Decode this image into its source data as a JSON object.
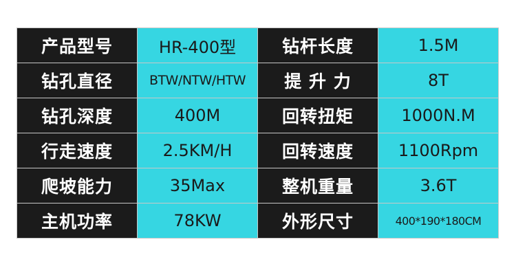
{
  "colors": {
    "label_bg": "#1b1b1b",
    "value_bg": "#36d6e2"
  },
  "rows": [
    {
      "label1": "产品型号",
      "value1": "HR-400型",
      "label2": "钻杆长度",
      "value2": "1.5M"
    },
    {
      "label1": "钻孔直径",
      "value1": "BTW/NTW/HTW",
      "label2": "提 升 力",
      "value2": "8T"
    },
    {
      "label1": "钻孔深度",
      "value1": "400M",
      "label2": "回转扭矩",
      "value2": "1000N.M"
    },
    {
      "label1": "行走速度",
      "value1": "2.5KM/H",
      "label2": "回转速度",
      "value2": "1100Rpm"
    },
    {
      "label1": "爬坡能力",
      "value1": "35Max",
      "label2": "整机重量",
      "value2": "3.6T"
    },
    {
      "label1": "主机功率",
      "value1": "78KW",
      "label2": "外形尺寸",
      "value2": "400*190*180CM"
    }
  ]
}
